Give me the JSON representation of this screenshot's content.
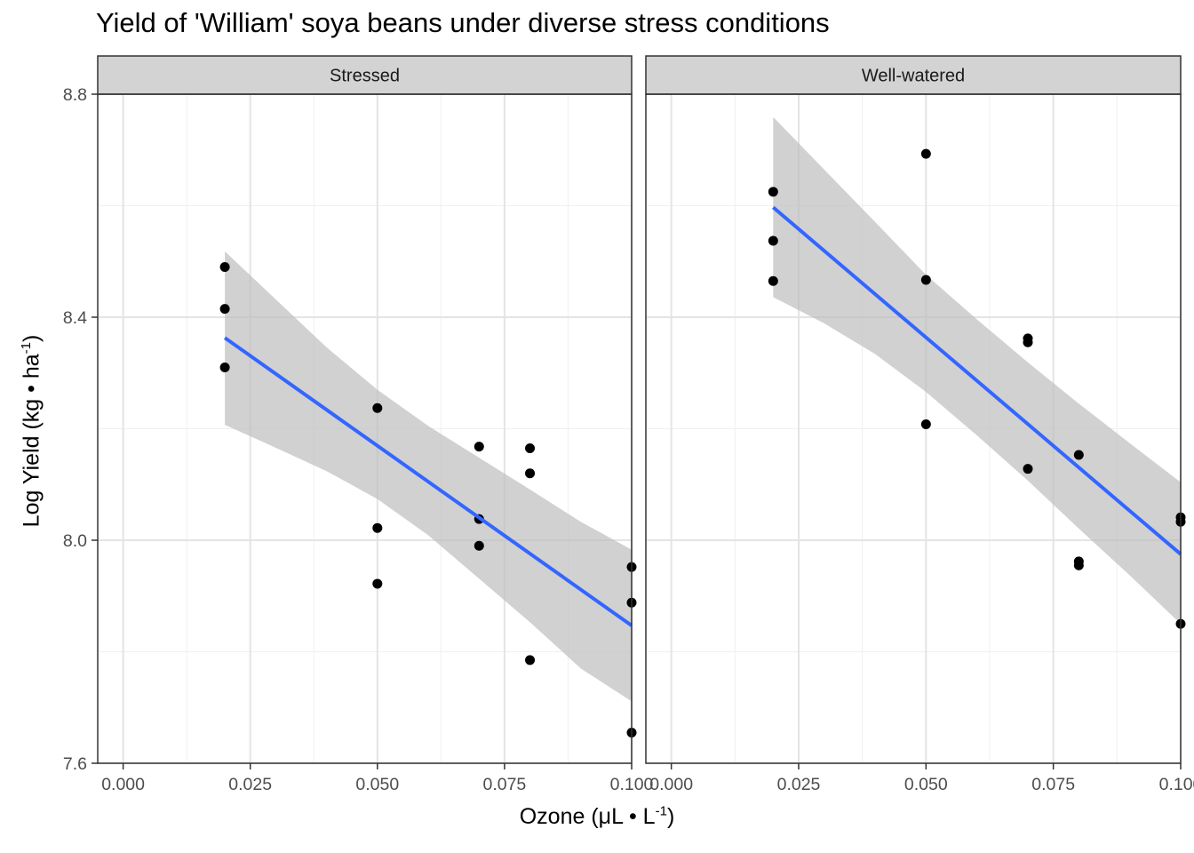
{
  "chart_data": {
    "type": "scatter",
    "title": "Yield of 'William' soya beans under diverse stress conditions",
    "xlabel": {
      "main": "Ozone (μL • L",
      "sup": "-1",
      "end": ")"
    },
    "ylabel": {
      "main": "Log Yield (kg • ha",
      "sup": "-1",
      "end": ")"
    },
    "xlim": [
      -0.005,
      0.1
    ],
    "ylim": [
      7.6,
      8.8
    ],
    "x_ticks": [
      {
        "value": 0.0,
        "label": "0.000"
      },
      {
        "value": 0.025,
        "label": "0.025"
      },
      {
        "value": 0.05,
        "label": "0.050"
      },
      {
        "value": 0.075,
        "label": "0.075"
      },
      {
        "value": 0.1,
        "label": "0.100"
      }
    ],
    "y_ticks": [
      {
        "value": 7.6,
        "label": "7.6"
      },
      {
        "value": 8.0,
        "label": "8.0"
      },
      {
        "value": 8.4,
        "label": "8.4"
      },
      {
        "value": 8.8,
        "label": "8.8"
      }
    ],
    "grid": true,
    "theme": "bw",
    "colors": {
      "fit_line": "#3366ff",
      "ribbon": "#bdbdbd",
      "points": "#000000",
      "strip": "#d3d3d3"
    },
    "panels": [
      {
        "strip": "Stressed",
        "points": [
          [
            0.02,
            8.49
          ],
          [
            0.02,
            8.415
          ],
          [
            0.02,
            8.31
          ],
          [
            0.05,
            8.237
          ],
          [
            0.05,
            8.022
          ],
          [
            0.05,
            7.922
          ],
          [
            0.07,
            8.168
          ],
          [
            0.07,
            8.038
          ],
          [
            0.07,
            7.99
          ],
          [
            0.08,
            8.165
          ],
          [
            0.08,
            8.12
          ],
          [
            0.08,
            7.785
          ],
          [
            0.1,
            7.952
          ],
          [
            0.1,
            7.888
          ],
          [
            0.1,
            7.655
          ]
        ],
        "fit": {
          "x": [
            0.02,
            0.1
          ],
          "y": [
            8.363,
            7.847
          ]
        },
        "ribbon": [
          {
            "x": 0.02,
            "lo": 8.207,
            "hi": 8.518
          },
          {
            "x": 0.03,
            "lo": 8.166,
            "hi": 8.432
          },
          {
            "x": 0.04,
            "lo": 8.124,
            "hi": 8.346
          },
          {
            "x": 0.05,
            "lo": 8.074,
            "hi": 8.27
          },
          {
            "x": 0.06,
            "lo": 8.009,
            "hi": 8.205
          },
          {
            "x": 0.07,
            "lo": 7.931,
            "hi": 8.148
          },
          {
            "x": 0.08,
            "lo": 7.853,
            "hi": 8.091
          },
          {
            "x": 0.09,
            "lo": 7.77,
            "hi": 8.033
          },
          {
            "x": 0.1,
            "lo": 7.711,
            "hi": 7.983
          }
        ]
      },
      {
        "strip": "Well-watered",
        "points": [
          [
            0.02,
            8.625
          ],
          [
            0.02,
            8.537
          ],
          [
            0.02,
            8.465
          ],
          [
            0.05,
            8.693
          ],
          [
            0.05,
            8.467
          ],
          [
            0.05,
            8.208
          ],
          [
            0.07,
            8.362
          ],
          [
            0.07,
            8.355
          ],
          [
            0.07,
            8.128
          ],
          [
            0.08,
            8.153
          ],
          [
            0.08,
            7.962
          ],
          [
            0.08,
            7.955
          ],
          [
            0.1,
            8.041
          ],
          [
            0.1,
            8.033
          ],
          [
            0.1,
            7.85
          ]
        ],
        "fit": {
          "x": [
            0.02,
            0.1
          ],
          "y": [
            8.597,
            7.975
          ]
        },
        "ribbon": [
          {
            "x": 0.02,
            "lo": 8.436,
            "hi": 8.759
          },
          {
            "x": 0.03,
            "lo": 8.389,
            "hi": 8.665
          },
          {
            "x": 0.04,
            "lo": 8.334,
            "hi": 8.571
          },
          {
            "x": 0.05,
            "lo": 8.266,
            "hi": 8.476
          },
          {
            "x": 0.06,
            "lo": 8.188,
            "hi": 8.396
          },
          {
            "x": 0.07,
            "lo": 8.107,
            "hi": 8.319
          },
          {
            "x": 0.08,
            "lo": 8.021,
            "hi": 8.245
          },
          {
            "x": 0.09,
            "lo": 7.937,
            "hi": 8.174
          },
          {
            "x": 0.1,
            "lo": 7.85,
            "hi": 8.104
          }
        ]
      }
    ]
  }
}
